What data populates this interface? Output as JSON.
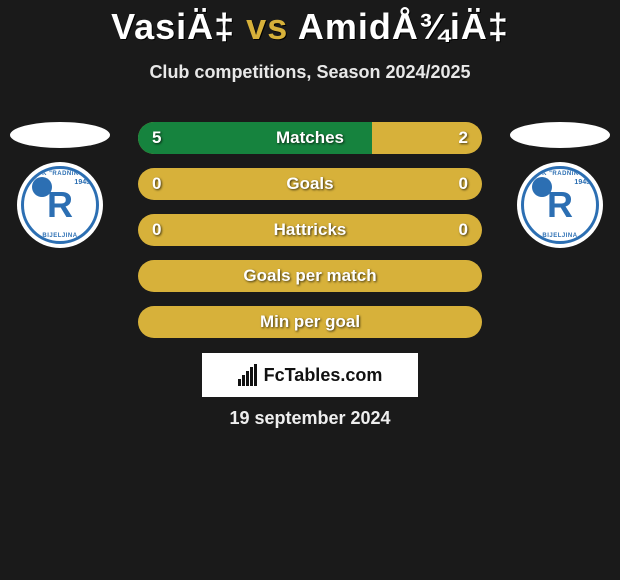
{
  "title": {
    "left": "VasiÄ‡",
    "vs": "vs",
    "right": "AmidÅ¾iÄ‡"
  },
  "subtitle": "Club competitions, Season 2024/2025",
  "colors": {
    "accent": "#d7b13a",
    "barBase": "#d7b13a",
    "barFill": "#16833e",
    "background": "#1a1a1a",
    "badgeBlue": "#2c6fb3",
    "white": "#ffffff",
    "black": "#111111"
  },
  "players": {
    "left": {
      "club": "FK \"RADNIK\"",
      "city": "BIJELJINA",
      "year": "1945"
    },
    "right": {
      "club": "FK \"RADNIK\"",
      "city": "BIJELJINA",
      "year": "1945"
    }
  },
  "rows": [
    {
      "label": "Matches",
      "left": "5",
      "right": "2",
      "leftFillPct": 68,
      "rightFillPct": 0
    },
    {
      "label": "Goals",
      "left": "0",
      "right": "0",
      "leftFillPct": 0,
      "rightFillPct": 0
    },
    {
      "label": "Hattricks",
      "left": "0",
      "right": "0",
      "leftFillPct": 0,
      "rightFillPct": 0
    },
    {
      "label": "Goals per match",
      "left": "",
      "right": "",
      "leftFillPct": 0,
      "rightFillPct": 0
    },
    {
      "label": "Min per goal",
      "left": "",
      "right": "",
      "leftFillPct": 0,
      "rightFillPct": 0
    }
  ],
  "brand": "FcTables.com",
  "date": "19 september 2024"
}
